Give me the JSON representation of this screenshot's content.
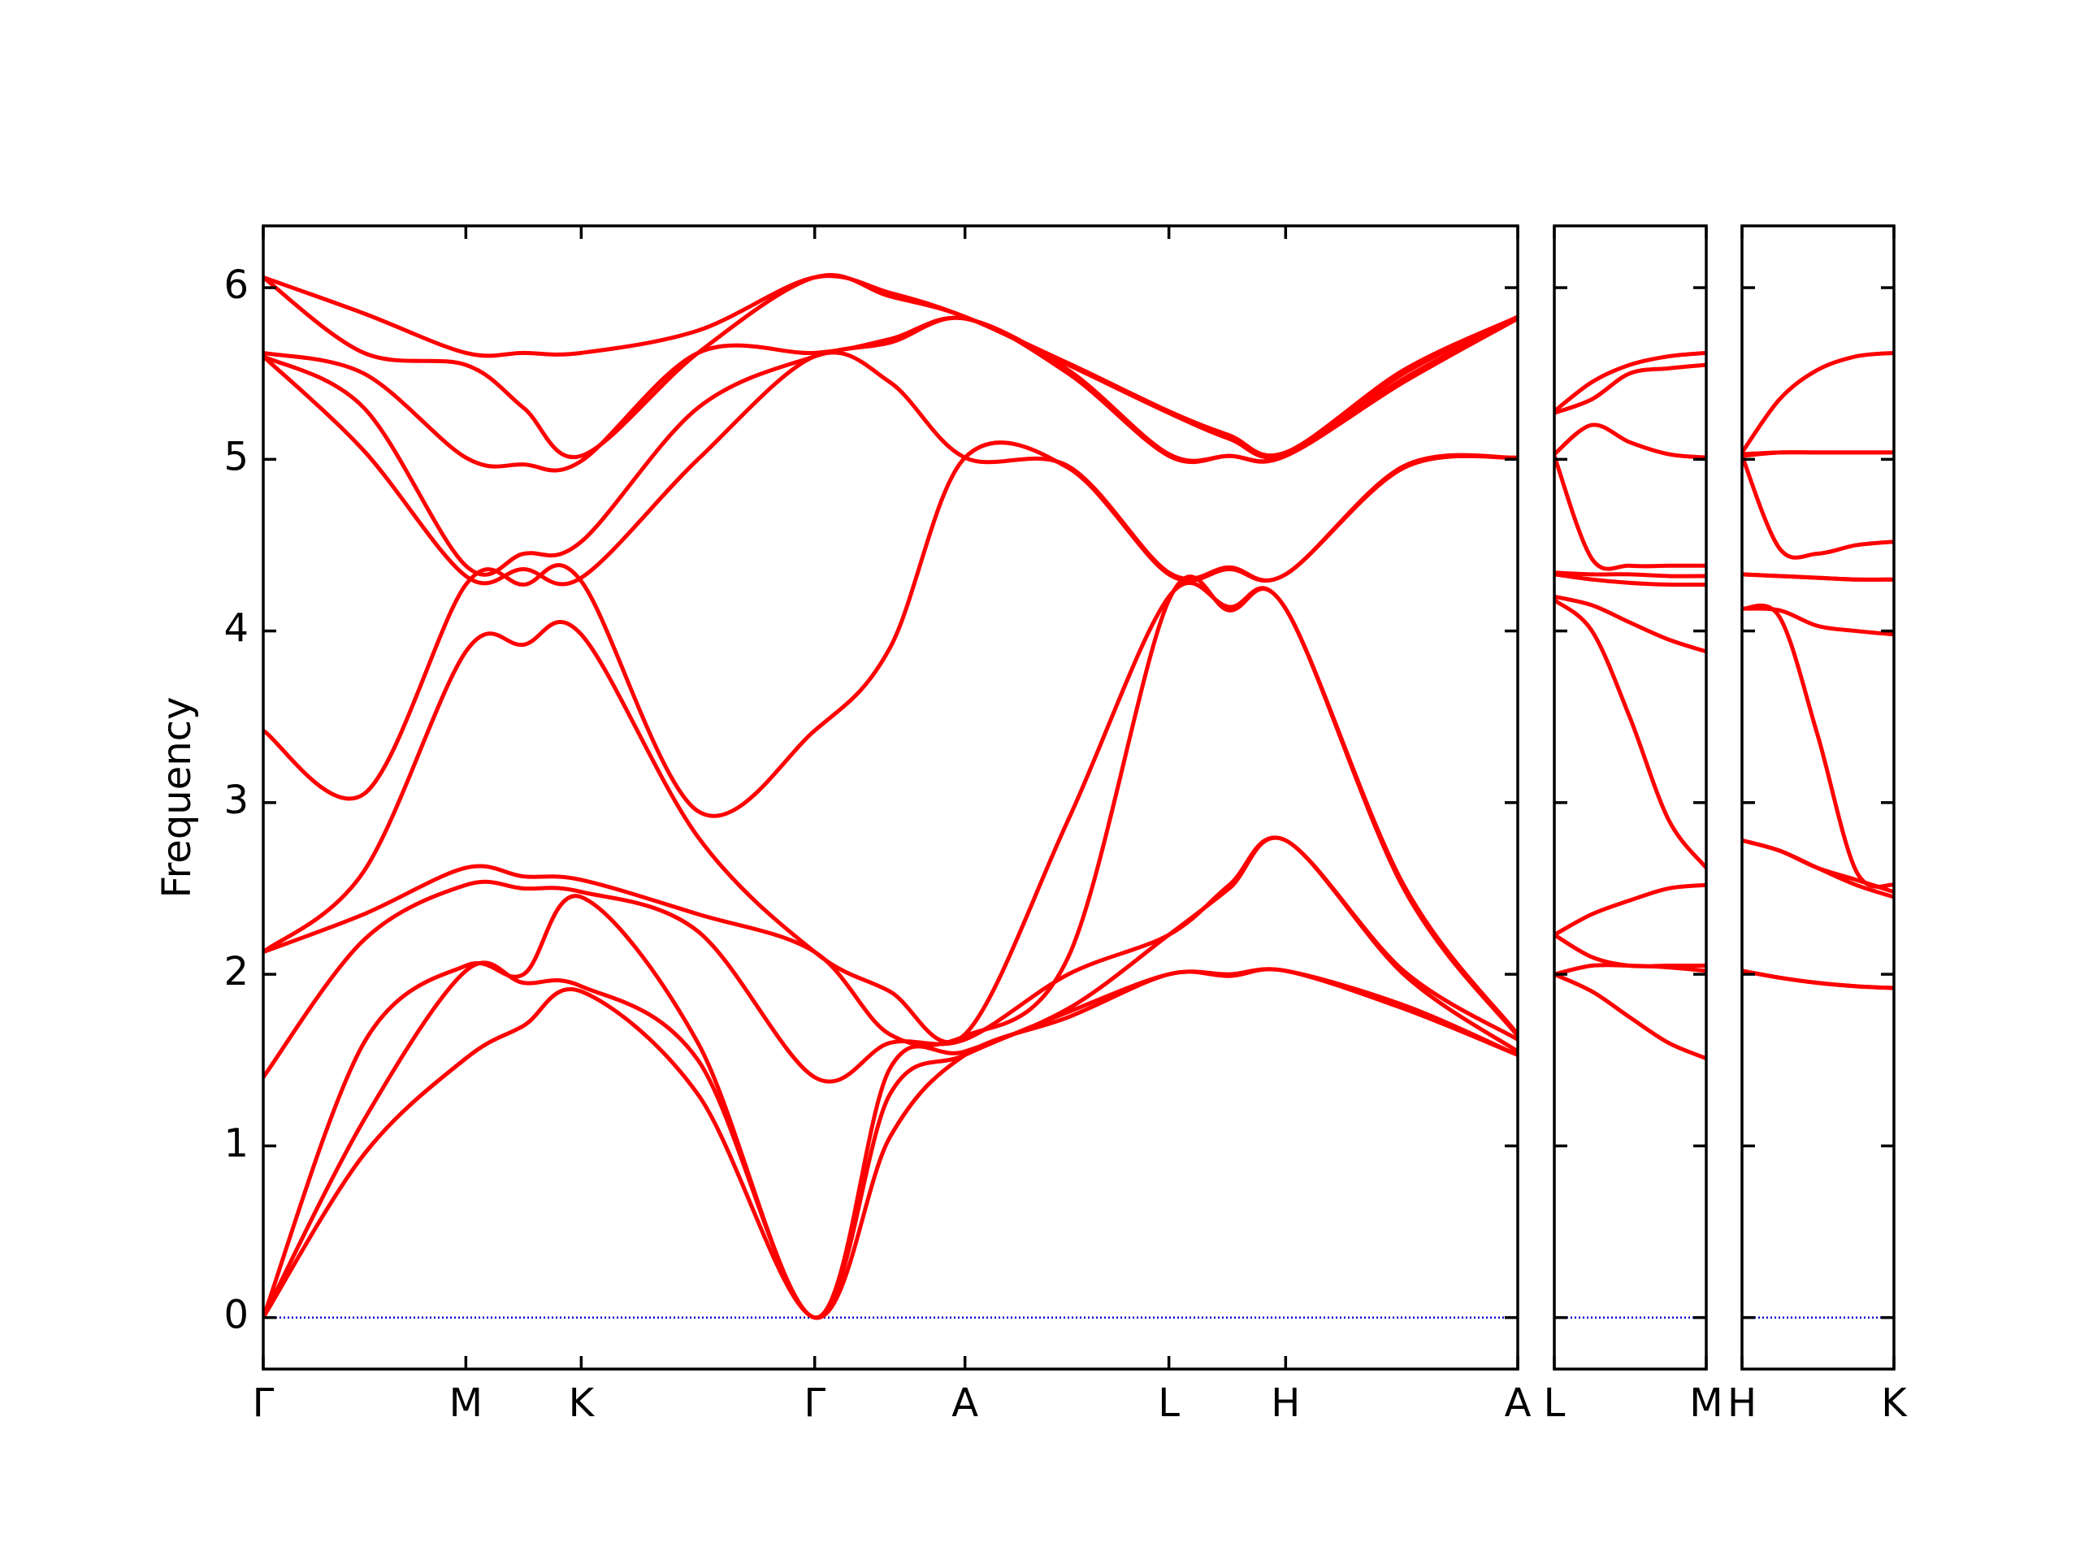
{
  "chart_data": [
    {
      "type": "line",
      "ylabel": "Frequency",
      "color": "#ff0000",
      "zero_line_color": "#0000cc",
      "zero_line": 0,
      "show_ytick_labels": true,
      "xlim": [
        0,
        9.35
      ],
      "ylim": [
        -0.3,
        6.36
      ],
      "yticks": [
        0,
        1,
        2,
        3,
        4,
        5,
        6
      ],
      "xticks": [
        {
          "value": 0,
          "label": "Γ"
        },
        {
          "value": 1.51,
          "label": "M"
        },
        {
          "value": 2.37,
          "label": "K"
        },
        {
          "value": 4.11,
          "label": "Γ"
        },
        {
          "value": 5.23,
          "label": "A"
        },
        {
          "value": 6.75,
          "label": "L"
        },
        {
          "value": 7.62,
          "label": "H"
        },
        {
          "value": 9.35,
          "label": "A"
        }
      ],
      "x": [
        0,
        0.75,
        1.51,
        1.94,
        2.37,
        3.24,
        4.11,
        4.67,
        5.23,
        6.0,
        6.75,
        7.2,
        7.62,
        8.5,
        9.35
      ],
      "series": [
        {
          "values": [
            0,
            0.95,
            1.51,
            1.7,
            1.9,
            1.3,
            0,
            1.05,
            1.53,
            1.75,
            2.0,
            1.99,
            2.02,
            1.8,
            1.53
          ]
        },
        {
          "values": [
            0,
            1.15,
            2.02,
            1.95,
            1.93,
            1.5,
            0,
            1.3,
            1.53,
            1.78,
            2.0,
            2.0,
            2.02,
            1.82,
            1.53
          ]
        },
        {
          "values": [
            0,
            1.6,
            2.05,
            2.0,
            2.45,
            1.6,
            0,
            1.45,
            1.55,
            1.8,
            2.23,
            2.5,
            2.78,
            2.0,
            1.55
          ]
        },
        {
          "values": [
            1.4,
            2.2,
            2.52,
            2.5,
            2.48,
            2.25,
            1.4,
            1.6,
            1.62,
            2.0,
            2.23,
            2.52,
            2.78,
            2.02,
            1.62
          ]
        },
        {
          "values": [
            2.13,
            2.35,
            2.62,
            2.57,
            2.55,
            2.35,
            2.13,
            1.65,
            1.64,
            2.1,
            4.18,
            4.12,
            4.13,
            2.5,
            1.64
          ]
        },
        {
          "values": [
            2.13,
            2.6,
            3.88,
            3.92,
            3.98,
            2.8,
            2.13,
            1.9,
            1.65,
            2.9,
            4.2,
            4.14,
            4.13,
            2.52,
            1.65
          ]
        },
        {
          "values": [
            3.42,
            3.05,
            4.27,
            4.27,
            4.29,
            2.95,
            3.42,
            3.9,
            5.01,
            4.95,
            4.33,
            4.36,
            4.33,
            4.95,
            5.01
          ]
        },
        {
          "values": [
            5.6,
            5.05,
            4.32,
            4.36,
            4.31,
            5.0,
            5.6,
            5.45,
            5.01,
            4.96,
            4.34,
            4.37,
            4.33,
            4.96,
            5.01
          ]
        },
        {
          "values": [
            5.6,
            5.3,
            4.38,
            4.45,
            4.52,
            5.3,
            5.6,
            5.68,
            5.82,
            5.5,
            5.02,
            5.02,
            5.02,
            5.45,
            5.82
          ]
        },
        {
          "values": [
            5.62,
            5.5,
            5.01,
            4.97,
            4.99,
            5.62,
            5.62,
            5.7,
            5.82,
            5.52,
            5.03,
            5.02,
            5.02,
            5.47,
            5.82
          ]
        },
        {
          "values": [
            6.06,
            5.62,
            5.55,
            5.3,
            5.02,
            5.62,
            6.06,
            5.95,
            5.83,
            5.55,
            5.27,
            5.12,
            5.03,
            5.5,
            5.83
          ]
        },
        {
          "values": [
            6.06,
            5.85,
            5.62,
            5.62,
            5.62,
            5.75,
            6.06,
            5.97,
            5.83,
            5.56,
            5.28,
            5.14,
            5.04,
            5.52,
            5.83
          ]
        }
      ]
    },
    {
      "type": "line",
      "color": "#ff0000",
      "zero_line_color": "#0000cc",
      "zero_line": 0,
      "show_ytick_labels": false,
      "xlim": [
        0,
        1.13
      ],
      "ylim": [
        -0.3,
        6.36
      ],
      "yticks": [
        0,
        1,
        2,
        3,
        4,
        5,
        6
      ],
      "xticks": [
        {
          "value": 0,
          "label": "L"
        },
        {
          "value": 1.13,
          "label": "M"
        }
      ],
      "x": [
        0,
        0.28,
        0.56,
        0.85,
        1.13
      ],
      "series": [
        {
          "values": [
            2.0,
            1.9,
            1.75,
            1.6,
            1.51
          ]
        },
        {
          "values": [
            2.0,
            2.05,
            2.05,
            2.04,
            2.02
          ]
        },
        {
          "values": [
            2.23,
            2.1,
            2.05,
            2.05,
            2.05
          ]
        },
        {
          "values": [
            2.23,
            2.35,
            2.43,
            2.5,
            2.52
          ]
        },
        {
          "values": [
            4.18,
            4.0,
            3.5,
            2.9,
            2.62
          ]
        },
        {
          "values": [
            4.2,
            4.15,
            4.05,
            3.95,
            3.88
          ]
        },
        {
          "values": [
            4.33,
            4.3,
            4.28,
            4.27,
            4.27
          ]
        },
        {
          "values": [
            4.34,
            4.33,
            4.33,
            4.32,
            4.32
          ]
        },
        {
          "values": [
            5.02,
            4.42,
            4.38,
            4.38,
            4.38
          ]
        },
        {
          "values": [
            5.03,
            5.2,
            5.1,
            5.03,
            5.01
          ]
        },
        {
          "values": [
            5.27,
            5.35,
            5.5,
            5.53,
            5.55
          ]
        },
        {
          "values": [
            5.28,
            5.45,
            5.55,
            5.6,
            5.62
          ]
        }
      ]
    },
    {
      "type": "line",
      "color": "#ff0000",
      "zero_line_color": "#0000cc",
      "zero_line": 0,
      "show_ytick_labels": false,
      "xlim": [
        0,
        1.13
      ],
      "ylim": [
        -0.3,
        6.36
      ],
      "yticks": [
        0,
        1,
        2,
        3,
        4,
        5,
        6
      ],
      "xticks": [
        {
          "value": 0,
          "label": "H"
        },
        {
          "value": 1.13,
          "label": "K"
        }
      ],
      "x": [
        0,
        0.28,
        0.56,
        0.85,
        1.13
      ],
      "series": [
        {
          "values": [
            2.02,
            1.98,
            1.95,
            1.93,
            1.92
          ]
        },
        {
          "values": [
            2.02,
            1.98,
            1.95,
            1.93,
            1.92
          ]
        },
        {
          "values": [
            2.78,
            2.72,
            2.62,
            2.52,
            2.45
          ]
        },
        {
          "values": [
            2.78,
            2.72,
            2.62,
            2.55,
            2.48
          ]
        },
        {
          "values": [
            4.13,
            4.08,
            3.4,
            2.6,
            2.52
          ]
        },
        {
          "values": [
            4.13,
            4.12,
            4.03,
            4.0,
            3.98
          ]
        },
        {
          "values": [
            4.33,
            4.32,
            4.31,
            4.3,
            4.3
          ]
        },
        {
          "values": [
            4.33,
            4.32,
            4.31,
            4.3,
            4.3
          ]
        },
        {
          "values": [
            5.02,
            4.48,
            4.45,
            4.5,
            4.52
          ]
        },
        {
          "values": [
            5.02,
            5.04,
            5.04,
            5.04,
            5.04
          ]
        },
        {
          "values": [
            5.03,
            5.04,
            5.04,
            5.04,
            5.04
          ]
        },
        {
          "values": [
            5.04,
            5.35,
            5.52,
            5.6,
            5.62
          ]
        }
      ]
    }
  ]
}
